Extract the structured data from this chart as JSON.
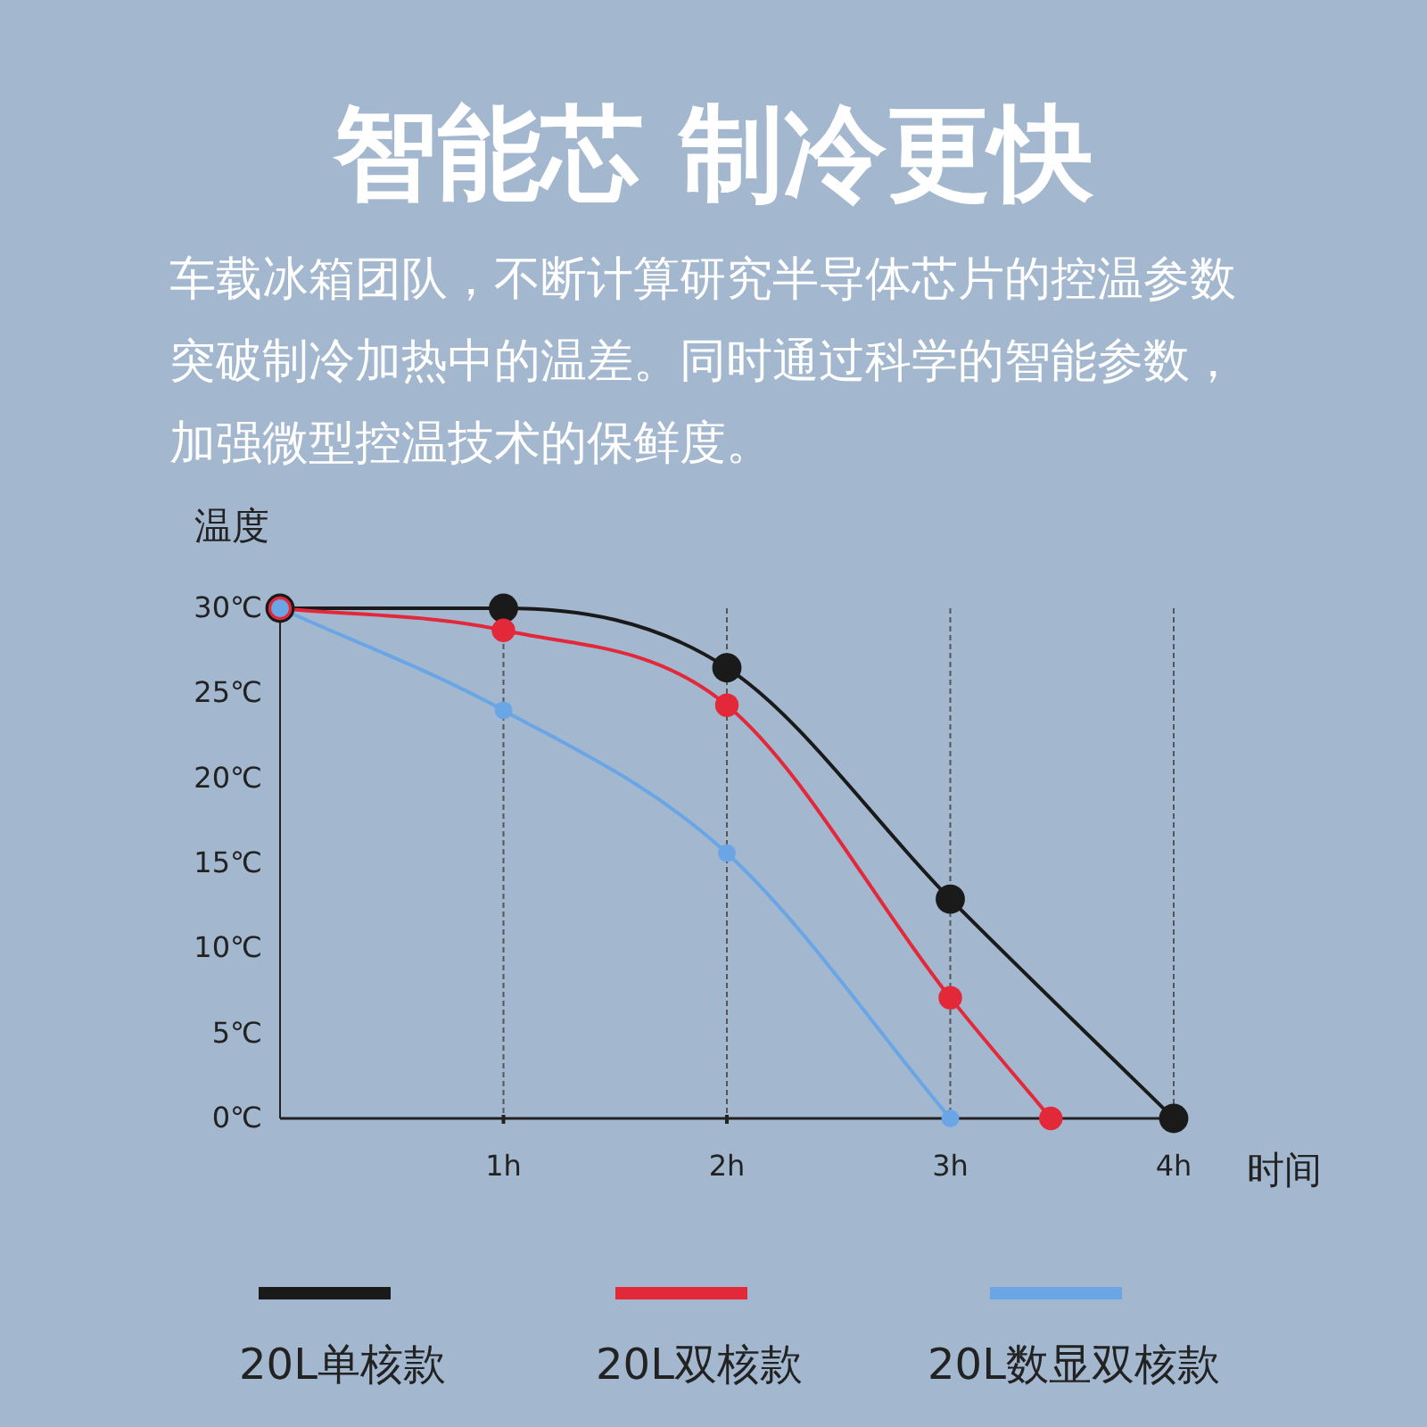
{
  "chart_data": {
    "type": "line",
    "title": "智能芯 制冷更快",
    "subtitle": "车载冰箱团队，不断计算研究半导体芯片的控温参数突破制冷加热中的温差。同时通过科学的智能参数，加强微型控温技术的保鲜度。",
    "xlabel": "时间",
    "ylabel": "温度",
    "xlim": [
      0,
      4
    ],
    "xticks": [
      {
        "value": 1,
        "label": "1h"
      },
      {
        "value": 2,
        "label": "2h"
      },
      {
        "value": 3,
        "label": "3h"
      },
      {
        "value": 4,
        "label": "4h"
      }
    ],
    "ylim": [
      0,
      30
    ],
    "yticks": [
      {
        "value": 0,
        "label": "0℃"
      },
      {
        "value": 5,
        "label": "5℃"
      },
      {
        "value": 10,
        "label": "10℃"
      },
      {
        "value": 15,
        "label": "15℃"
      },
      {
        "value": 20,
        "label": "20℃"
      },
      {
        "value": 25,
        "label": "25℃"
      },
      {
        "value": 30,
        "label": "30℃"
      }
    ],
    "grid": "x",
    "legend": "bottom",
    "marker": "circle",
    "line_style": "solid",
    "series": [
      {
        "name": "20L单核款",
        "color": "#1a1a1a",
        "x": [
          0,
          1,
          2,
          3,
          4
        ],
        "values": [
          30,
          30,
          26.5,
          12.9,
          0
        ]
      },
      {
        "name": "20L双核款",
        "color": "#e3283a",
        "x": [
          0,
          1,
          2,
          3,
          3.45
        ],
        "values": [
          30,
          28.7,
          24.3,
          7.1,
          0
        ]
      },
      {
        "name": "20L数显双核款",
        "color": "#6aa6e6",
        "x": [
          0,
          1,
          2,
          3
        ],
        "values": [
          30,
          24,
          15.6,
          0
        ]
      }
    ]
  }
}
